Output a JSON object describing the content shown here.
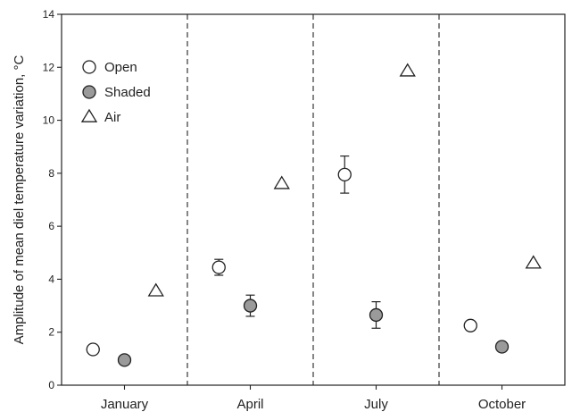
{
  "chart_data": {
    "type": "scatter",
    "title": "",
    "ylabel": "Amplitude of mean diel temperature variation, °C",
    "xlabel": "",
    "ylim": [
      0,
      14
    ],
    "yticks": [
      0,
      2,
      4,
      6,
      8,
      10,
      12,
      14
    ],
    "categories": [
      "January",
      "April",
      "July",
      "October"
    ],
    "grid": false,
    "legend": {
      "placement": "top-left"
    },
    "separators": "dashed vertical lines between months",
    "series": [
      {
        "name": "Open",
        "marker": "circle-open",
        "color": "#ffffff",
        "values": [
          1.35,
          4.45,
          7.95,
          2.25
        ],
        "error": [
          0.12,
          0.3,
          0.7,
          0.1
        ]
      },
      {
        "name": "Shaded",
        "marker": "circle-filled",
        "color": "#9a9a9a",
        "values": [
          0.95,
          3.0,
          2.65,
          1.45
        ],
        "error": [
          0.0,
          0.4,
          0.5,
          0.0
        ]
      },
      {
        "name": "Air",
        "marker": "triangle-open",
        "color": "#ffffff",
        "values": [
          3.55,
          7.6,
          11.85,
          4.6
        ],
        "error": [
          0,
          0,
          0,
          0
        ]
      }
    ]
  }
}
